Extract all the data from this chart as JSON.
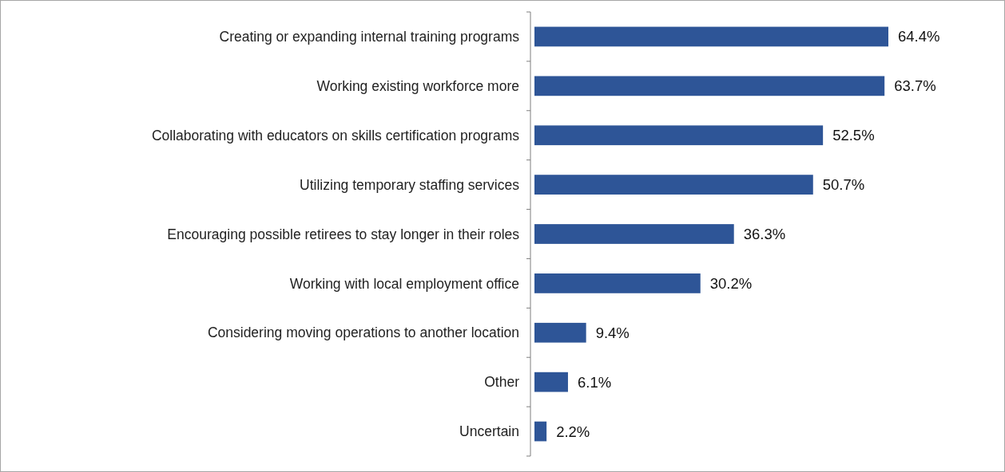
{
  "chart_data": {
    "type": "bar",
    "orientation": "horizontal",
    "categories": [
      "Creating or expanding internal training programs",
      "Working existing workforce more",
      "Collaborating with educators on skills certification programs",
      "Utilizing temporary staffing services",
      "Encouraging possible retirees to stay longer in their roles",
      "Working with local employment office",
      "Considering moving operations to another location",
      "Other",
      "Uncertain"
    ],
    "values": [
      64.4,
      63.7,
      52.5,
      50.7,
      36.3,
      30.2,
      9.4,
      6.1,
      2.2
    ],
    "value_labels": [
      "64.4%",
      "63.7%",
      "52.5%",
      "50.7%",
      "36.3%",
      "30.2%",
      "9.4%",
      "6.1%",
      "2.2%"
    ],
    "color": "#2e5597"
  }
}
